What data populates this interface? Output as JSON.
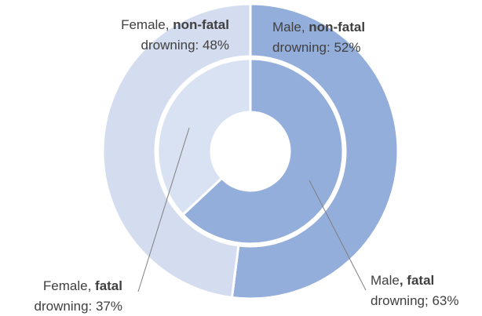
{
  "chart_data": {
    "type": "nested-donut",
    "series": [
      {
        "name": "non-fatal",
        "categories": [
          "Male",
          "Female"
        ],
        "values": [
          52,
          48
        ],
        "value_labels": [
          "52%",
          "48%"
        ],
        "colors": [
          "#94aedb",
          "#d3ddef"
        ],
        "labels": [
          {
            "parts": [
              {
                "text": "Male, "
              },
              {
                "text": "non-fatal",
                "bold": true
              }
            ],
            "line2": "drowning: "
          },
          {
            "parts": [
              {
                "text": "Female, "
              },
              {
                "text": "non-fatal",
                "bold": true
              }
            ],
            "line2": "drowning: "
          }
        ]
      },
      {
        "name": "fatal",
        "categories": [
          "Male",
          "Female"
        ],
        "values": [
          63,
          37
        ],
        "value_labels": [
          "63%",
          "37%"
        ],
        "colors": [
          "#94aedb",
          "#d9e2f2"
        ],
        "labels": [
          {
            "parts": [
              {
                "text": "Male"
              },
              {
                "text": ", fatal",
                "bold": true
              }
            ],
            "line2": "drowning; "
          },
          {
            "parts": [
              {
                "text": "Female, "
              },
              {
                "text": "fatal",
                "bold": true
              }
            ],
            "line2": "drowning: "
          }
        ]
      }
    ]
  }
}
